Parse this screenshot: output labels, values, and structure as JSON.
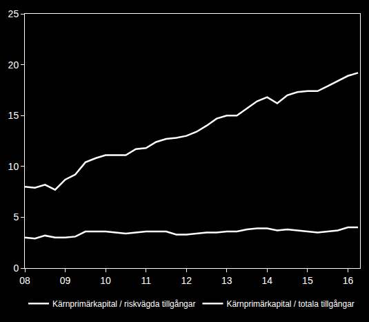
{
  "chart_data": {
    "type": "line",
    "x": [
      2008,
      2008.25,
      2008.5,
      2008.75,
      2009,
      2009.25,
      2009.5,
      2009.75,
      2010,
      2010.25,
      2010.5,
      2010.75,
      2011,
      2011.25,
      2011.5,
      2011.75,
      2012,
      2012.25,
      2012.5,
      2012.75,
      2013,
      2013.25,
      2013.5,
      2013.75,
      2014,
      2014.25,
      2014.5,
      2014.75,
      2015,
      2015.25,
      2015.5,
      2015.75,
      2016,
      2016.25
    ],
    "series": [
      {
        "name": "Kärnprimärkapital / riskvägda tillgångar",
        "color": "#ffffff",
        "values": [
          8.0,
          7.9,
          8.2,
          7.7,
          8.7,
          9.2,
          10.4,
          10.8,
          11.1,
          11.1,
          11.1,
          11.7,
          11.8,
          12.4,
          12.7,
          12.8,
          13.0,
          13.4,
          14.0,
          14.7,
          15.0,
          15.0,
          15.7,
          16.4,
          16.8,
          16.2,
          17.0,
          17.3,
          17.4,
          17.4,
          17.9,
          18.4,
          18.9,
          19.2
        ]
      },
      {
        "name": "Kärnprimärkapital / totala tillgångar",
        "color": "#ffffff",
        "values": [
          3.0,
          2.9,
          3.2,
          3.0,
          3.0,
          3.1,
          3.6,
          3.6,
          3.6,
          3.5,
          3.4,
          3.5,
          3.6,
          3.6,
          3.6,
          3.3,
          3.3,
          3.4,
          3.5,
          3.5,
          3.6,
          3.6,
          3.8,
          3.9,
          3.9,
          3.7,
          3.8,
          3.7,
          3.6,
          3.5,
          3.6,
          3.7,
          4.0,
          4.0
        ]
      }
    ],
    "xlim": [
      2008,
      2016.3
    ],
    "xticks": [
      {
        "value": 2008,
        "label": "08"
      },
      {
        "value": 2009,
        "label": "09"
      },
      {
        "value": 2010,
        "label": "10"
      },
      {
        "value": 2011,
        "label": "11"
      },
      {
        "value": 2012,
        "label": "12"
      },
      {
        "value": 2013,
        "label": "13"
      },
      {
        "value": 2014,
        "label": "14"
      },
      {
        "value": 2015,
        "label": "15"
      },
      {
        "value": 2016,
        "label": "16"
      }
    ],
    "ylim": [
      0,
      25
    ],
    "yticks": [
      0,
      5,
      10,
      15,
      20,
      25
    ],
    "grid": false,
    "legend": "bottom"
  }
}
